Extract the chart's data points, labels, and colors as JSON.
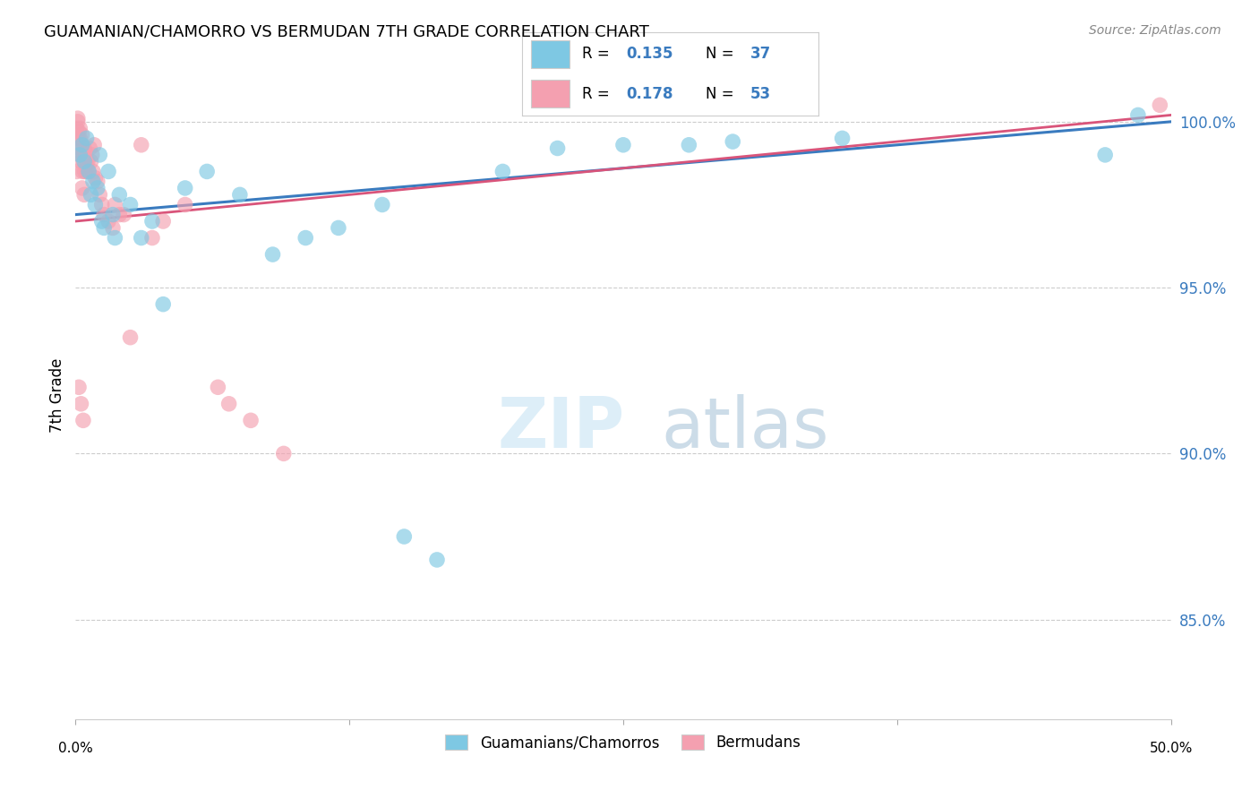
{
  "title": "GUAMANIAN/CHAMORRO VS BERMUDAN 7TH GRADE CORRELATION CHART",
  "source": "Source: ZipAtlas.com",
  "ylabel": "7th Grade",
  "xlim": [
    0.0,
    50.0
  ],
  "ylim": [
    82.0,
    101.5
  ],
  "y_ticks": [
    85.0,
    90.0,
    95.0,
    100.0
  ],
  "blue_r": "0.135",
  "blue_n": "37",
  "pink_r": "0.178",
  "pink_n": "53",
  "blue_color": "#7ec8e3",
  "pink_color": "#f4a0b0",
  "blue_line_color": "#3a7bbf",
  "pink_line_color": "#d9547a",
  "legend_label_blue": "Guamanians/Chamorros",
  "legend_label_pink": "Bermudans",
  "blue_scatter_x": [
    0.2,
    0.3,
    0.4,
    0.5,
    0.6,
    0.7,
    0.8,
    0.9,
    1.0,
    1.1,
    1.2,
    1.3,
    1.5,
    1.7,
    1.8,
    2.0,
    2.5,
    3.0,
    3.5,
    4.0,
    5.0,
    6.0,
    7.5,
    9.0,
    10.5,
    12.0,
    14.0,
    15.0,
    16.5,
    19.5,
    22.0,
    25.0,
    28.0,
    30.0,
    35.0,
    47.0,
    48.5
  ],
  "blue_scatter_y": [
    99.0,
    99.3,
    98.8,
    99.5,
    98.5,
    97.8,
    98.2,
    97.5,
    98.0,
    99.0,
    97.0,
    96.8,
    98.5,
    97.2,
    96.5,
    97.8,
    97.5,
    96.5,
    97.0,
    94.5,
    98.0,
    98.5,
    97.8,
    96.0,
    96.5,
    96.8,
    97.5,
    87.5,
    86.8,
    98.5,
    99.2,
    99.3,
    99.3,
    99.4,
    99.5,
    99.0,
    100.2
  ],
  "pink_scatter_x": [
    0.05,
    0.1,
    0.12,
    0.15,
    0.18,
    0.2,
    0.22,
    0.25,
    0.28,
    0.3,
    0.32,
    0.35,
    0.38,
    0.4,
    0.42,
    0.45,
    0.48,
    0.5,
    0.55,
    0.6,
    0.65,
    0.7,
    0.75,
    0.8,
    0.85,
    0.9,
    1.0,
    1.1,
    1.2,
    1.3,
    1.5,
    1.7,
    2.0,
    2.5,
    3.0,
    4.0,
    5.0,
    6.5,
    7.0,
    8.0,
    9.5,
    0.15,
    0.25,
    0.35,
    0.1,
    0.2,
    0.05,
    1.8,
    2.2,
    3.5,
    0.3,
    0.4,
    49.5
  ],
  "pink_scatter_y": [
    99.8,
    100.0,
    99.5,
    99.7,
    99.2,
    99.5,
    99.0,
    98.8,
    99.3,
    99.6,
    98.5,
    99.0,
    98.8,
    99.2,
    98.5,
    99.1,
    98.7,
    98.5,
    98.8,
    98.5,
    99.2,
    98.8,
    99.0,
    98.5,
    99.3,
    98.3,
    98.2,
    97.8,
    97.5,
    97.2,
    97.0,
    96.8,
    97.2,
    93.5,
    99.3,
    97.0,
    97.5,
    92.0,
    91.5,
    91.0,
    90.0,
    92.0,
    91.5,
    91.0,
    100.1,
    99.8,
    98.5,
    97.5,
    97.2,
    96.5,
    98.0,
    97.8,
    100.5
  ],
  "blue_trendline": [
    97.2,
    100.0
  ],
  "pink_trendline": [
    97.0,
    100.2
  ]
}
